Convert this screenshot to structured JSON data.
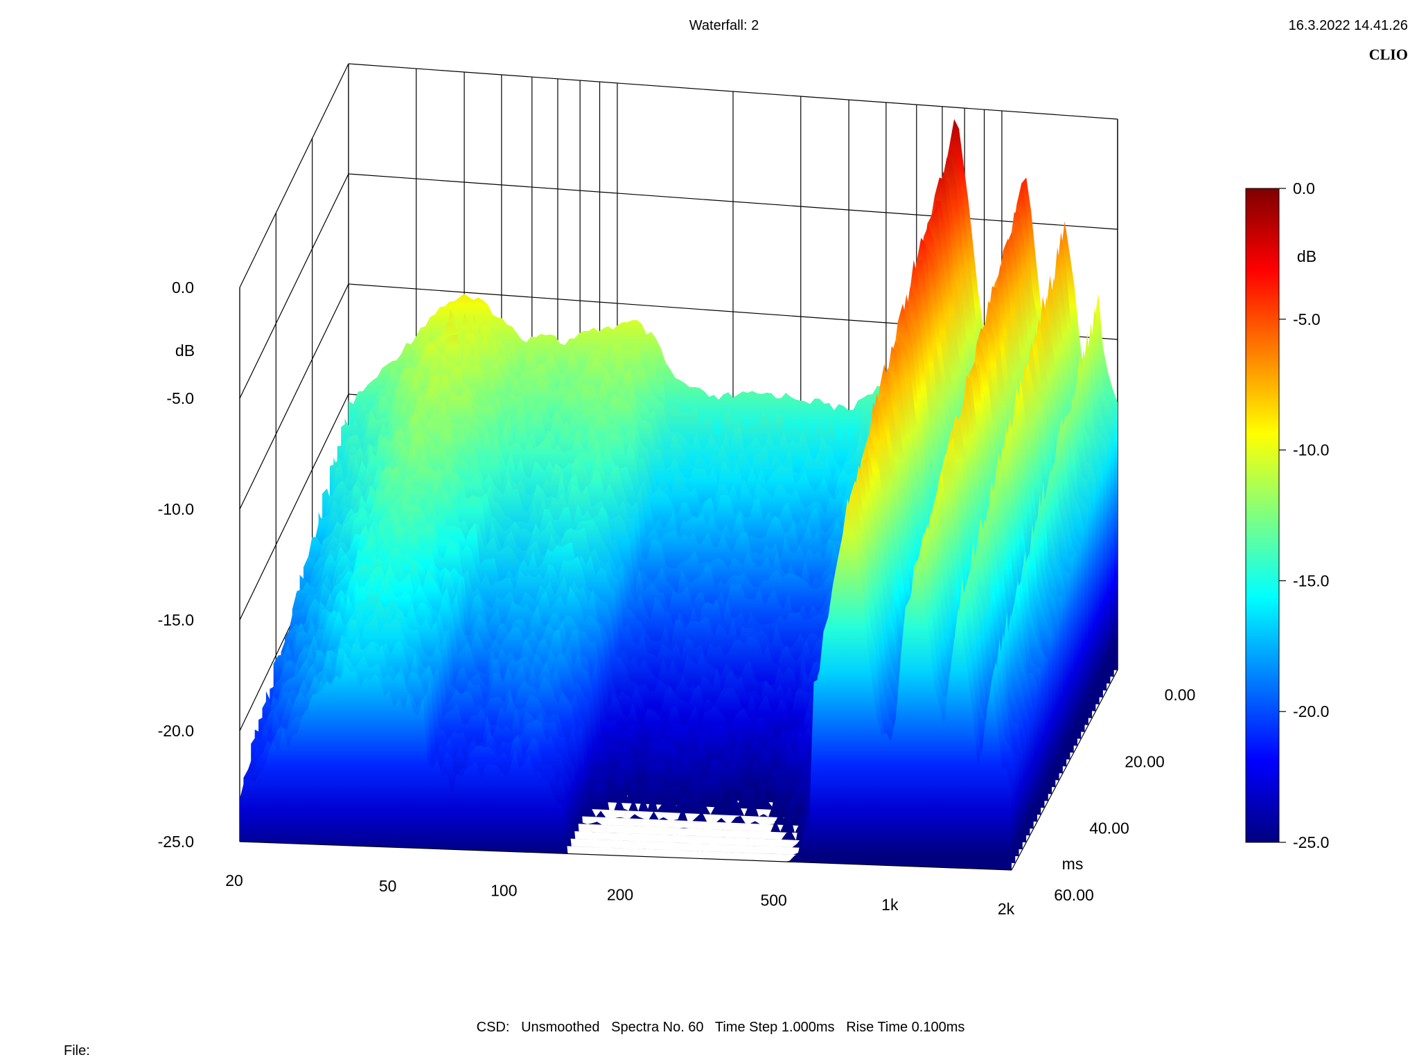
{
  "header": {
    "title": "Waterfall: 2",
    "timestamp": "16.3.2022 14.41.26",
    "brand": "CLIO"
  },
  "footer": {
    "settings": "CSD:   Unsmoothed   Spectra No. 60   Time Step 1.000ms   Rise Time 0.100ms",
    "file_label": "File:"
  },
  "colors": {
    "background": "#ffffff",
    "grid": "#000000",
    "colormap": [
      "#00007f",
      "#0000ff",
      "#007fff",
      "#00ffff",
      "#7fff7f",
      "#ffff00",
      "#ff7f00",
      "#ff0000",
      "#7f0000"
    ]
  },
  "chart_data": {
    "type": "waterfall",
    "x_axis": {
      "scale": "log",
      "range": [
        20,
        2000
      ],
      "tick_labels": [
        "20",
        "50",
        "100",
        "200",
        "500",
        "1k",
        "2k"
      ],
      "tick_values": [
        20,
        50,
        100,
        200,
        500,
        1000,
        2000
      ]
    },
    "y_axis": {
      "unit_label": "dB",
      "range": [
        -25,
        0
      ],
      "tick_labels": [
        "0.0",
        "-5.0",
        "-10.0",
        "-15.0",
        "-20.0",
        "-25.0"
      ],
      "tick_values": [
        0,
        -5,
        -10,
        -15,
        -20,
        -25
      ]
    },
    "z_axis": {
      "unit_label": "ms",
      "range": [
        0,
        60
      ],
      "tick_labels": [
        "0.00",
        "20.00",
        "40.00",
        "60.00"
      ],
      "tick_values": [
        0,
        20,
        40,
        60
      ]
    },
    "colorbar": {
      "unit_label": "dB",
      "range": [
        -25,
        0
      ],
      "tick_labels": [
        "0.0",
        "-5.0",
        "-10.0",
        "-15.0",
        "-20.0",
        "-25.0"
      ],
      "tick_values": [
        0,
        -5,
        -10,
        -15,
        -20,
        -25
      ]
    },
    "spectrum_t0": [
      {
        "f": 20,
        "db": -15.3
      },
      {
        "f": 24,
        "db": -13.8
      },
      {
        "f": 28,
        "db": -12.5
      },
      {
        "f": 32,
        "db": -11.2
      },
      {
        "f": 36,
        "db": -10.3
      },
      {
        "f": 40,
        "db": -10.0
      },
      {
        "f": 46,
        "db": -10.3
      },
      {
        "f": 52,
        "db": -11.2
      },
      {
        "f": 58,
        "db": -11.7
      },
      {
        "f": 65,
        "db": -11.3
      },
      {
        "f": 72,
        "db": -11.8
      },
      {
        "f": 80,
        "db": -11.4
      },
      {
        "f": 90,
        "db": -11.0
      },
      {
        "f": 100,
        "db": -10.8
      },
      {
        "f": 112,
        "db": -10.6
      },
      {
        "f": 125,
        "db": -11.3
      },
      {
        "f": 140,
        "db": -13.0
      },
      {
        "f": 160,
        "db": -13.5
      },
      {
        "f": 180,
        "db": -13.8
      },
      {
        "f": 200,
        "db": -13.6
      },
      {
        "f": 250,
        "db": -13.4
      },
      {
        "f": 300,
        "db": -13.5
      },
      {
        "f": 350,
        "db": -13.7
      },
      {
        "f": 400,
        "db": -13.9
      },
      {
        "f": 450,
        "db": -13.0
      },
      {
        "f": 500,
        "db": -12.6
      },
      {
        "f": 560,
        "db": -11.0
      },
      {
        "f": 620,
        "db": -8.5
      },
      {
        "f": 680,
        "db": -5.0
      },
      {
        "f": 730,
        "db": -1.5
      },
      {
        "f": 760,
        "db": 0.0
      },
      {
        "f": 800,
        "db": -2.5
      },
      {
        "f": 860,
        "db": -7.5
      },
      {
        "f": 920,
        "db": -11.0
      },
      {
        "f": 980,
        "db": -11.5
      },
      {
        "f": 1040,
        "db": -6.5
      },
      {
        "f": 1100,
        "db": -3.8
      },
      {
        "f": 1150,
        "db": -2.3
      },
      {
        "f": 1200,
        "db": -4.5
      },
      {
        "f": 1260,
        "db": -8.5
      },
      {
        "f": 1320,
        "db": -10.5
      },
      {
        "f": 1400,
        "db": -7.0
      },
      {
        "f": 1460,
        "db": -4.5
      },
      {
        "f": 1520,
        "db": -6.5
      },
      {
        "f": 1580,
        "db": -9.5
      },
      {
        "f": 1650,
        "db": -12.0
      },
      {
        "f": 1720,
        "db": -9.5
      },
      {
        "f": 1780,
        "db": -7.5
      },
      {
        "f": 1840,
        "db": -10.5
      },
      {
        "f": 1920,
        "db": -12.0
      },
      {
        "f": 2000,
        "db": -12.5
      }
    ]
  }
}
